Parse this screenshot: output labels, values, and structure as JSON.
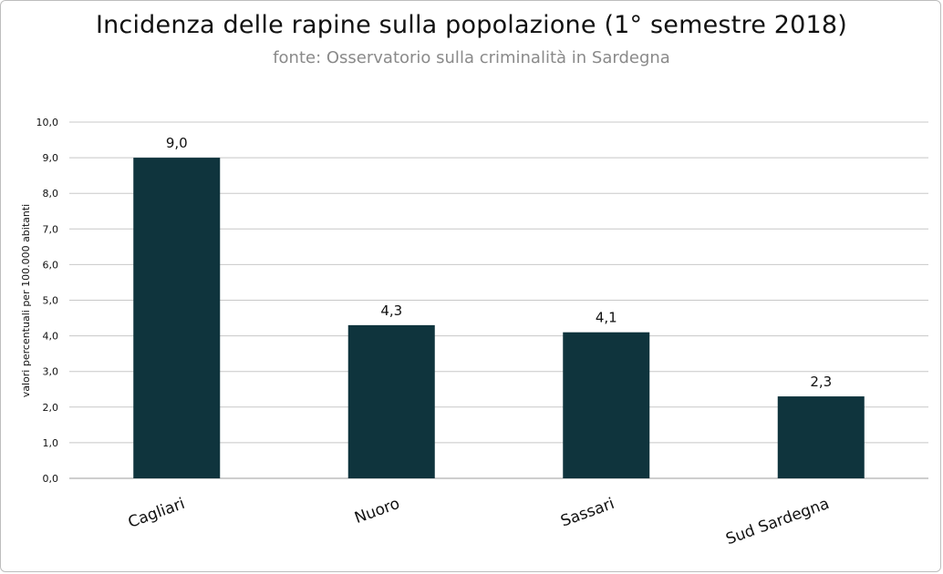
{
  "chart_data": {
    "type": "bar",
    "title": "Incidenza delle rapine sulla popolazione (1° semestre 2018)",
    "subtitle": "fonte: Osservatorio sulla criminalità in Sardegna",
    "xlabel": "",
    "ylabel": "valori percentuali per 100.000 abitanti",
    "categories": [
      "Cagliari",
      "Nuoro",
      "Sassari",
      "Sud Sardegna"
    ],
    "values": [
      9.0,
      4.3,
      4.1,
      2.3
    ],
    "data_labels": [
      "9,0",
      "4,3",
      "4,1",
      "2,3"
    ],
    "ylim": [
      0,
      10
    ],
    "yticks": [
      "0,0",
      "1,0",
      "2,0",
      "3,0",
      "4,0",
      "5,0",
      "6,0",
      "7,0",
      "8,0",
      "9,0",
      "10,0"
    ],
    "grid": true,
    "legend": "none",
    "colors": {
      "bar": "#0f343d",
      "grid": "#c8c8c8",
      "axis": "#9e9e9e"
    }
  }
}
